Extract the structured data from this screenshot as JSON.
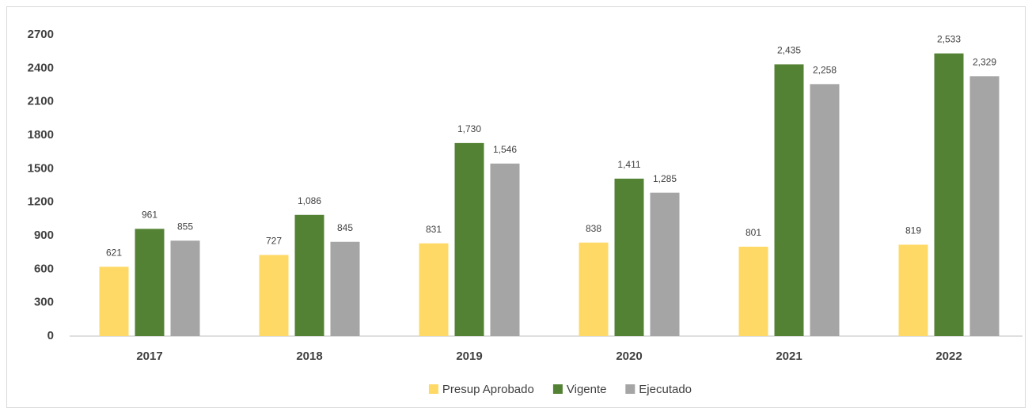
{
  "chart_data": {
    "type": "bar",
    "categories": [
      "2017",
      "2018",
      "2019",
      "2020",
      "2021",
      "2022"
    ],
    "series": [
      {
        "name": "Presup Aprobado",
        "color": "#ffd966",
        "values": [
          621,
          727,
          831,
          838,
          801,
          819
        ],
        "value_labels": [
          "621",
          "727",
          "831",
          "838",
          "801",
          "819"
        ]
      },
      {
        "name": "Vigente",
        "color": "#548235",
        "values": [
          961,
          1086,
          1730,
          1411,
          2435,
          2533
        ],
        "value_labels": [
          "961",
          "1,086",
          "1,730",
          "1,411",
          "2,435",
          "2,533"
        ]
      },
      {
        "name": "Ejecutado",
        "color": "#a5a5a5",
        "values": [
          855,
          845,
          1546,
          1285,
          2258,
          2329
        ],
        "value_labels": [
          "855",
          "845",
          "1,546",
          "1,285",
          "2,258",
          "2,329"
        ]
      }
    ],
    "ylim": [
      0,
      2700
    ],
    "yticks": [
      0,
      300,
      600,
      900,
      1200,
      1500,
      1800,
      2100,
      2400,
      2700
    ],
    "grid": false,
    "legend": "bottom"
  }
}
